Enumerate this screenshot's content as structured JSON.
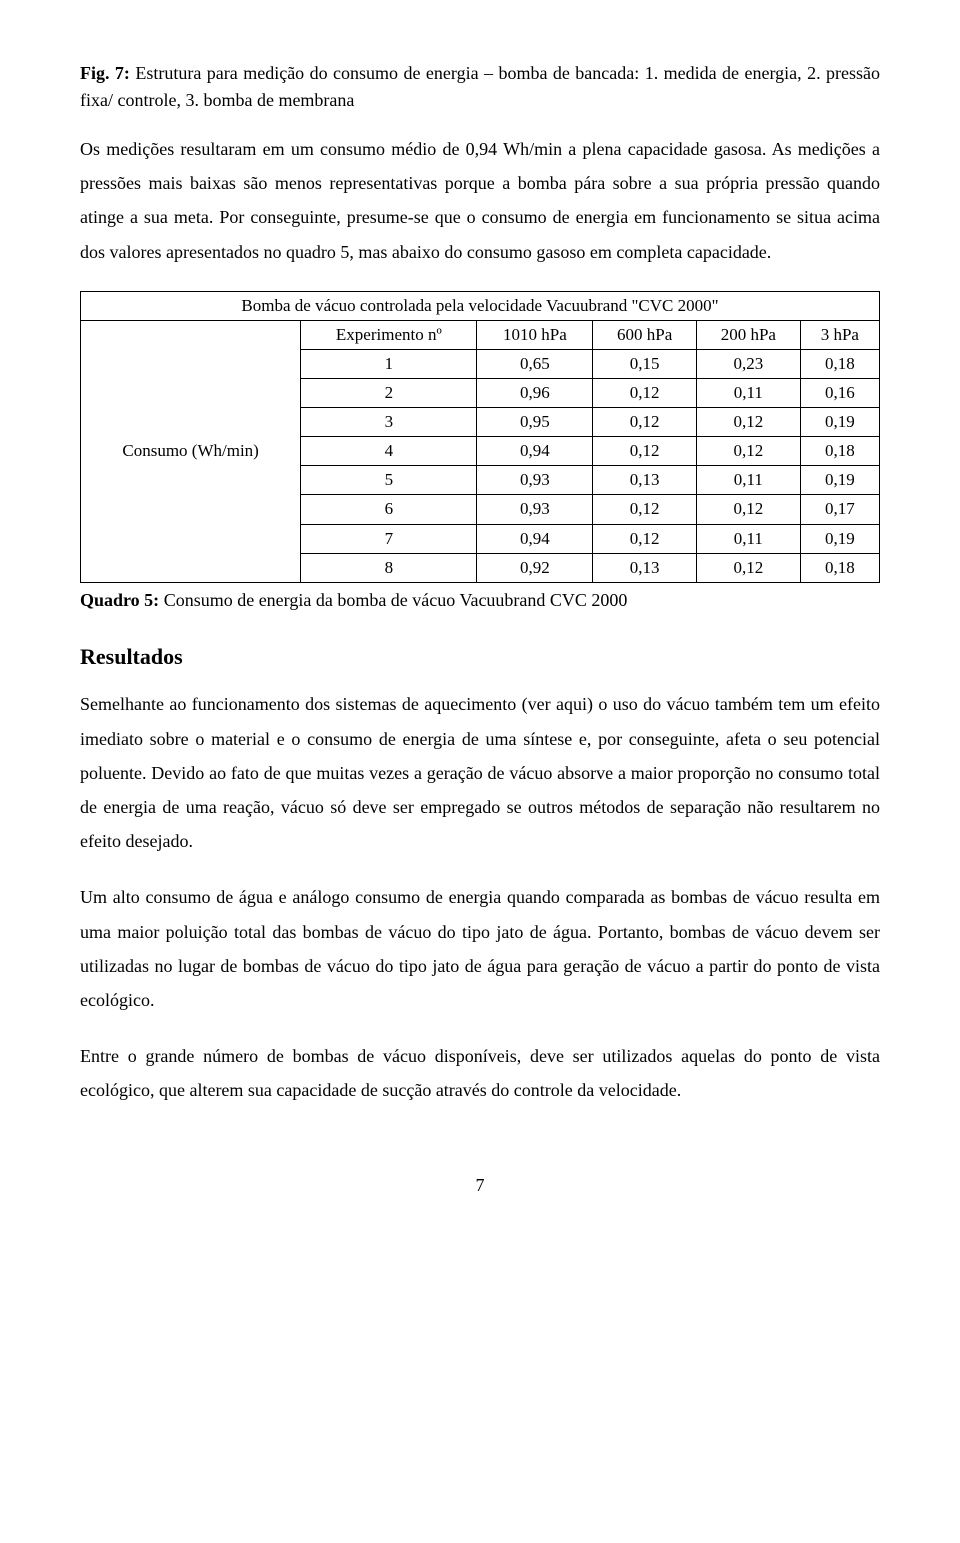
{
  "figCaption": {
    "label": "Fig. 7:",
    "text": " Estrutura para medição do consumo de energia – bomba de bancada: 1. medida de energia, 2. pressão fixa/ controle, 3. bomba de membrana"
  },
  "para1": "Os medições resultaram em um consumo médio de 0,94 Wh/min a plena capacidade gasosa. As medições a pressões mais baixas são menos representativas porque a bomba pára sobre a sua própria pressão quando atinge a sua meta. Por conseguinte, presume-se que o consumo de energia em funcionamento se situa acima dos valores apresentados no quadro 5, mas abaixo do consumo gasoso em completa capacidade.",
  "table": {
    "title": "Bomba de vácuo controlada pela velocidade Vacuubrand \"CVC 2000\"",
    "rowLabel": "Consumo (Wh/min)",
    "headers": [
      "Experimento nº",
      "1010 hPa",
      "600 hPa",
      "200 hPa",
      "3 hPa"
    ],
    "rows": [
      [
        "1",
        "0,65",
        "0,15",
        "0,23",
        "0,18"
      ],
      [
        "2",
        "0,96",
        "0,12",
        "0,11",
        "0,16"
      ],
      [
        "3",
        "0,95",
        "0,12",
        "0,12",
        "0,19"
      ],
      [
        "4",
        "0,94",
        "0,12",
        "0,12",
        "0,18"
      ],
      [
        "5",
        "0,93",
        "0,13",
        "0,11",
        "0,19"
      ],
      [
        "6",
        "0,93",
        "0,12",
        "0,12",
        "0,17"
      ],
      [
        "7",
        "0,94",
        "0,12",
        "0,11",
        "0,19"
      ],
      [
        "8",
        "0,92",
        "0,13",
        "0,12",
        "0,18"
      ]
    ]
  },
  "tableCaption": {
    "label": "Quadro 5:",
    "text": " Consumo de energia da bomba de vácuo Vacuubrand CVC 2000"
  },
  "sectionHeading": "Resultados",
  "para2": "Semelhante ao funcionamento dos sistemas de aquecimento (ver aqui) o uso do vácuo também tem um efeito imediato sobre o material e o consumo de energia de uma síntese e, por conseguinte, afeta o seu potencial poluente. Devido ao fato de que muitas vezes a geração de vácuo absorve a maior proporção no consumo total de energia de uma reação, vácuo só deve ser empregado se outros métodos de separação não resultarem no efeito desejado.",
  "para3": "Um alto consumo de água e análogo consumo de energia quando comparada as bombas de vácuo resulta em uma maior poluição total das bombas de vácuo do tipo jato de água. Portanto, bombas de vácuo devem ser utilizadas no lugar de bombas de vácuo do tipo jato de água para geração de vácuo a partir do ponto de vista ecológico.",
  "para4": "Entre o grande número de bombas de vácuo disponíveis, deve ser utilizados aquelas do ponto de vista ecológico, que alterem sua capacidade de sucção através do controle da velocidade.",
  "pageNumber": "7"
}
